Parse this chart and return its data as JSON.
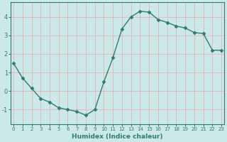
{
  "xlabel": "Humidex (Indice chaleur)",
  "ylabel": "",
  "x": [
    0,
    1,
    2,
    3,
    4,
    5,
    6,
    7,
    8,
    9,
    10,
    11,
    12,
    13,
    14,
    15,
    16,
    17,
    18,
    19,
    20,
    21,
    22,
    23
  ],
  "y": [
    1.5,
    0.7,
    0.15,
    -0.4,
    -0.6,
    -0.9,
    -1.0,
    -1.1,
    -1.3,
    -1.0,
    0.5,
    1.8,
    3.35,
    4.0,
    4.3,
    4.25,
    3.85,
    3.7,
    3.5,
    3.4,
    3.15,
    3.1,
    2.2,
    2.2
  ],
  "line_color": "#2e7d6e",
  "marker": "D",
  "marker_size": 2.5,
  "bg_color": "#cce9e9",
  "grid_color": "#e8b8b8",
  "axis_color": "#2e7d6e",
  "tick_color": "#2e7d6e",
  "ylim": [
    -1.8,
    4.8
  ],
  "yticks": [
    -1,
    0,
    1,
    2,
    3,
    4
  ],
  "xlim": [
    -0.3,
    23.3
  ]
}
